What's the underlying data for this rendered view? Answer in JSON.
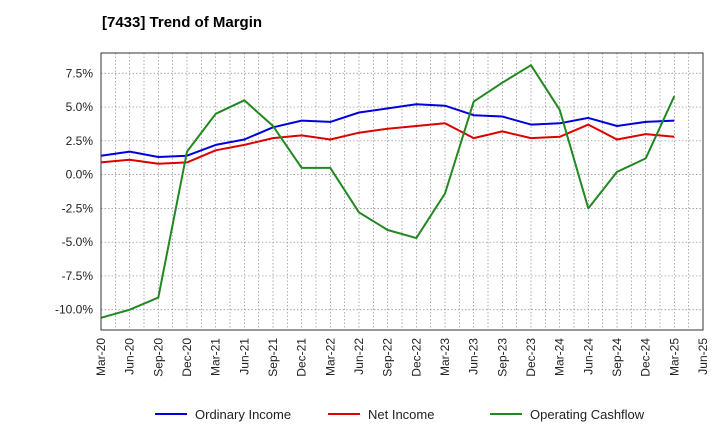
{
  "chart_data": {
    "type": "line",
    "title": "[7433]  Trend of Margin",
    "xlabel": "",
    "ylabel": "",
    "ylim": [
      -11.5,
      9.0
    ],
    "y_ticks": [
      7.5,
      5.0,
      2.5,
      0.0,
      -2.5,
      -5.0,
      -7.5,
      -10.0
    ],
    "y_tick_labels": [
      "7.5%",
      "5.0%",
      "2.5%",
      "0.0%",
      "-2.5%",
      "-5.0%",
      "-7.5%",
      "-10.0%"
    ],
    "x_tick_labels": [
      "Mar-20",
      "Jun-20",
      "Sep-20",
      "Dec-20",
      "Mar-21",
      "Jun-21",
      "Sep-21",
      "Dec-21",
      "Mar-22",
      "Jun-22",
      "Sep-22",
      "Dec-22",
      "Mar-23",
      "Jun-23",
      "Sep-23",
      "Dec-23",
      "Mar-24",
      "Jun-24",
      "Sep-24",
      "Dec-24",
      "Mar-25",
      "Jun-25"
    ],
    "grid": true,
    "legend_position": "bottom",
    "series": [
      {
        "name": "Ordinary Income",
        "color": "#0000dd",
        "values": [
          1.4,
          1.7,
          1.3,
          1.4,
          2.2,
          2.6,
          3.5,
          4.0,
          3.9,
          4.6,
          4.9,
          5.2,
          5.1,
          4.4,
          4.3,
          3.7,
          3.8,
          4.2,
          3.6,
          3.9,
          4.0,
          null
        ]
      },
      {
        "name": "Net Income",
        "color": "#dd0000",
        "values": [
          0.9,
          1.1,
          0.8,
          0.9,
          1.8,
          2.2,
          2.7,
          2.9,
          2.6,
          3.1,
          3.4,
          3.6,
          3.8,
          2.7,
          3.2,
          2.7,
          2.8,
          3.7,
          2.6,
          3.0,
          2.8,
          null
        ]
      },
      {
        "name": "Operating Cashflow",
        "color": "#228822",
        "values": [
          -10.6,
          -10.0,
          -9.1,
          1.7,
          4.5,
          5.5,
          3.6,
          0.5,
          0.5,
          -2.8,
          -4.1,
          -4.7,
          -1.4,
          5.4,
          6.8,
          8.1,
          4.8,
          -2.5,
          0.2,
          1.2,
          5.8,
          null
        ]
      }
    ]
  }
}
